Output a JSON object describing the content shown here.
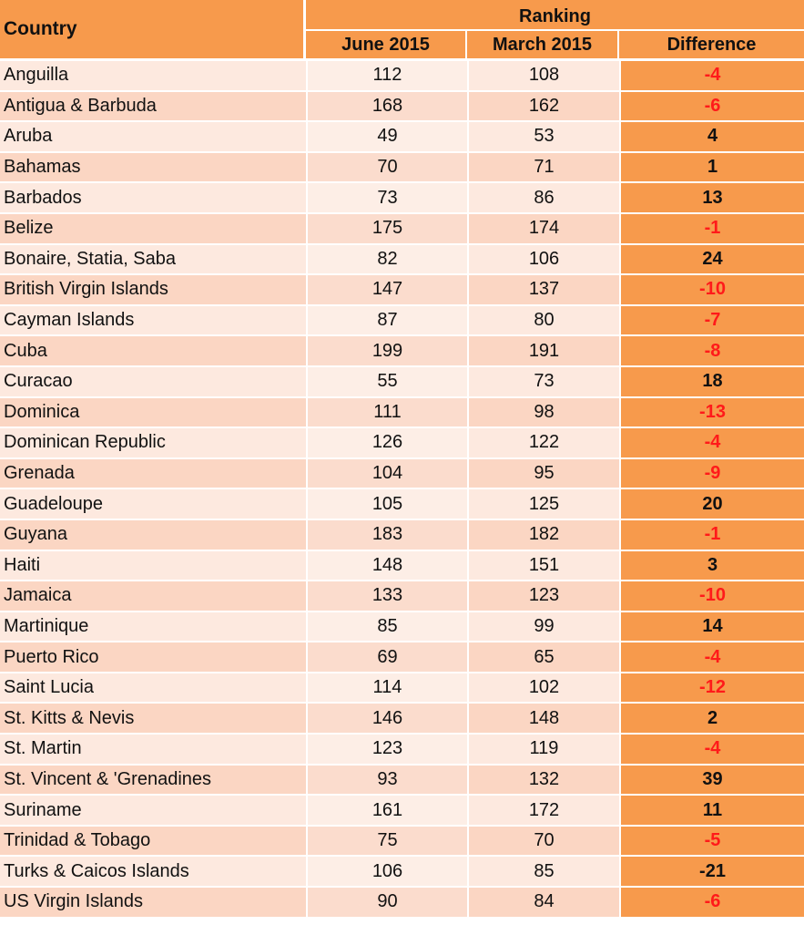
{
  "header": {
    "country": "Country",
    "ranking": "Ranking",
    "june": "June 2015",
    "march": "March 2015",
    "difference": "Difference"
  },
  "colors": {
    "header_bg": "#f79a4c",
    "row_light": "#fde9df",
    "row_dark": "#fbd6c3",
    "negative": "#ff1a1a"
  },
  "rows": [
    {
      "country": "Anguilla",
      "june": "112",
      "march": "108",
      "diff": "-4"
    },
    {
      "country": "Antigua & Barbuda",
      "june": "168",
      "march": "162",
      "diff": "-6"
    },
    {
      "country": "Aruba",
      "june": "49",
      "march": "53",
      "diff": "4"
    },
    {
      "country": "Bahamas",
      "june": "70",
      "march": "71",
      "diff": "1"
    },
    {
      "country": "Barbados",
      "june": "73",
      "march": "86",
      "diff": "13"
    },
    {
      "country": "Belize",
      "june": "175",
      "march": "174",
      "diff": "-1"
    },
    {
      "country": "Bonaire, Statia, Saba",
      "june": "82",
      "march": "106",
      "diff": "24"
    },
    {
      "country": "British Virgin Islands",
      "june": "147",
      "march": "137",
      "diff": "-10"
    },
    {
      "country": "Cayman Islands",
      "june": "87",
      "march": "80",
      "diff": "-7"
    },
    {
      "country": "Cuba",
      "june": "199",
      "march": "191",
      "diff": "-8"
    },
    {
      "country": "Curacao",
      "june": "55",
      "march": "73",
      "diff": "18"
    },
    {
      "country": "Dominica",
      "june": "111",
      "march": "98",
      "diff": "-13"
    },
    {
      "country": "Dominican Republic",
      "june": "126",
      "march": "122",
      "diff": "-4"
    },
    {
      "country": "Grenada",
      "june": "104",
      "march": "95",
      "diff": "-9"
    },
    {
      "country": "Guadeloupe",
      "june": "105",
      "march": "125",
      "diff": "20"
    },
    {
      "country": "Guyana",
      "june": "183",
      "march": "182",
      "diff": "-1"
    },
    {
      "country": "Haiti",
      "june": "148",
      "march": "151",
      "diff": "3"
    },
    {
      "country": "Jamaica",
      "june": "133",
      "march": "123",
      "diff": "-10"
    },
    {
      "country": "Martinique",
      "june": "85",
      "march": "99",
      "diff": "14"
    },
    {
      "country": "Puerto Rico",
      "june": "69",
      "march": "65",
      "diff": "-4"
    },
    {
      "country": "Saint Lucia",
      "june": "114",
      "march": "102",
      "diff": "-12"
    },
    {
      "country": "St. Kitts & Nevis",
      "june": "146",
      "march": "148",
      "diff": "2"
    },
    {
      "country": "St. Martin",
      "june": "123",
      "march": "119",
      "diff": "-4"
    },
    {
      "country": "St. Vincent & 'Grenadines",
      "june": "93",
      "march": "132",
      "diff": "39"
    },
    {
      "country": "Suriname",
      "june": "161",
      "march": "172",
      "diff": "11"
    },
    {
      "country": "Trinidad & Tobago",
      "june": "75",
      "march": "70",
      "diff": "-5"
    },
    {
      "country": "Turks & Caicos Islands",
      "june": "106",
      "march": "85",
      "diff": "-21",
      "diff_color": "black"
    },
    {
      "country": "US Virgin Islands",
      "june": "90",
      "march": "84",
      "diff": "-6"
    }
  ]
}
